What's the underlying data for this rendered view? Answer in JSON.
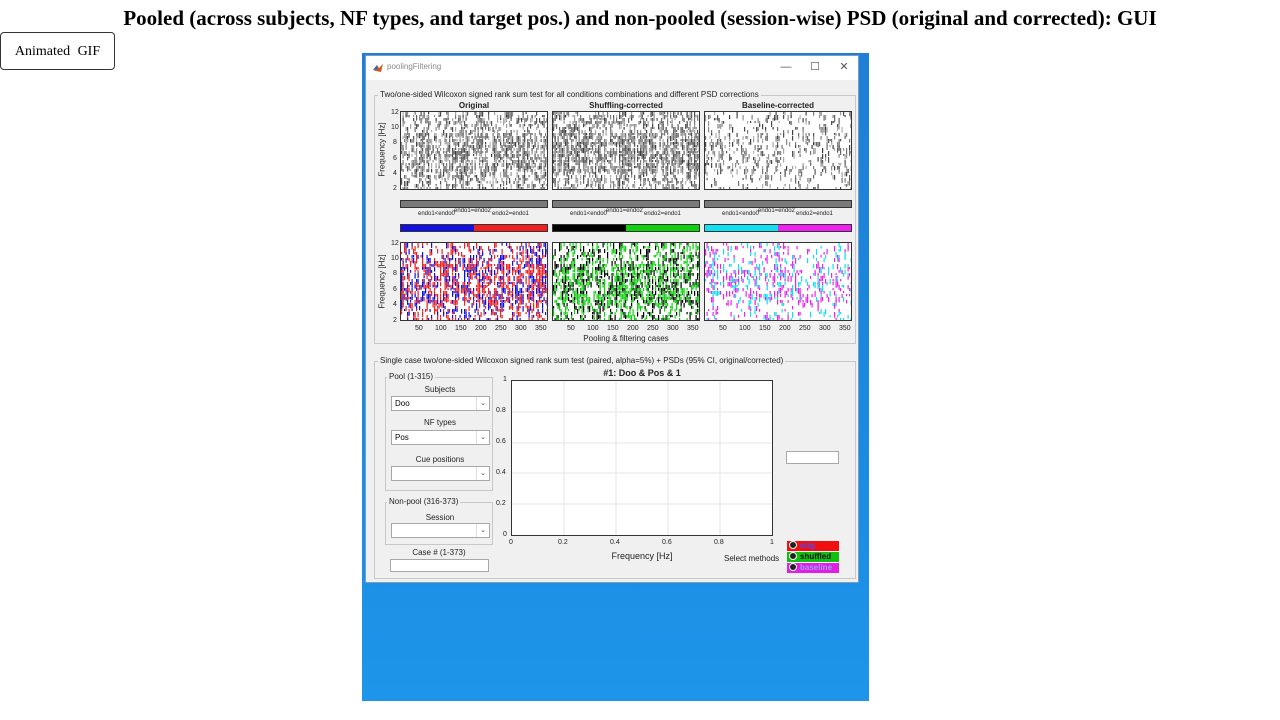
{
  "header": {
    "title": "Pooled (across subjects, NF types, and target pos.) and non-pooled (session-wise) PSD (original and corrected): GUI",
    "gif_button": "Animated GIF"
  },
  "window": {
    "title": "poolingFiltering",
    "controls": {
      "minimize": "—",
      "maximize": "☐",
      "close": "✕"
    }
  },
  "top_panel": {
    "title": "Two/one-sided Wilcoxon signed rank sum test for all conditions combinations and different PSD corrections",
    "columns": [
      "Original",
      "Shuffling-corrected",
      "Baseline-corrected"
    ],
    "ylabel": "Frequency [Hz]",
    "yticks": [
      "12",
      "10",
      "8",
      "6",
      "4",
      "2"
    ],
    "xticks": [
      "50",
      "100",
      "150",
      "200",
      "250",
      "300",
      "350"
    ],
    "xlabel": "Pooling & filtering cases",
    "legend_texts": [
      "endo1<endo0",
      "endo1=endo2",
      "endo2=endo1"
    ],
    "legend_colors": [
      [
        "#1010e0",
        "#f02020"
      ],
      [
        "#000000",
        "#10d010"
      ],
      [
        "#10e0f0",
        "#f020f0"
      ]
    ]
  },
  "bottom_panel": {
    "title": "Single case two/one-sided Wilcoxon signed rank sum test (paired, alpha=5%) + PSDs (95% CI, original/corrected)",
    "pool_group": {
      "title": "Pool (1-315)",
      "subjects_label": "Subjects",
      "subjects_value": "Doo",
      "nf_label": "NF types",
      "nf_value": "Pos",
      "cue_label": "Cue positions",
      "cue_value": ""
    },
    "nonpool_group": {
      "title": "Non-pool (316-373)",
      "session_label": "Session",
      "session_value": ""
    },
    "case_label": "Case # (1-373)",
    "case_value": "",
    "plot": {
      "title": "#1: Doo & Pos & 1",
      "xlabel": "Frequency [Hz]",
      "yticks": [
        "1",
        "0.8",
        "0.6",
        "0.4",
        "0.2",
        "0"
      ],
      "xticks": [
        "0",
        "0.2",
        "0.4",
        "0.6",
        "0.8",
        "1"
      ]
    },
    "select_methods_label": "Select methods",
    "methods": [
      {
        "label": "orig",
        "color": "#f01010"
      },
      {
        "label": "shuffled",
        "color": "#10c010"
      },
      {
        "label": "baseline",
        "color": "#e020e0"
      }
    ]
  }
}
